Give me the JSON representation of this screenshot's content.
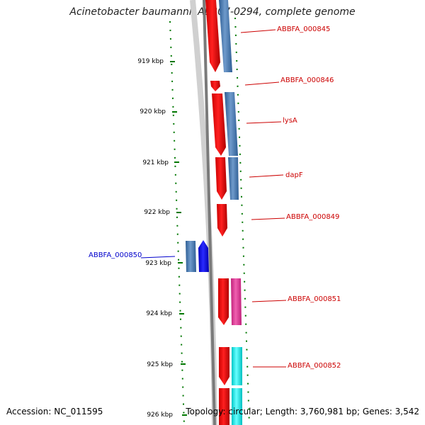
{
  "title": "Acinetobacter baumannii AB307-0294, complete genome",
  "ticks": [
    "919 kbp",
    "920 kbp",
    "921 kbp",
    "922 kbp",
    "923 kbp",
    "924 kbp",
    "925 kbp",
    "926 kbp"
  ],
  "genes": [
    {
      "name": "ABBFA_000845",
      "color": "#cc0000"
    },
    {
      "name": "ABBFA_000846",
      "color": "#cc0000"
    },
    {
      "name": "lysA",
      "color": "#cc0000"
    },
    {
      "name": "dapF",
      "color": "#cc0000"
    },
    {
      "name": "ABBFA_000849",
      "color": "#cc0000"
    },
    {
      "name": "ABBFA_000850",
      "color": "#0000cc"
    },
    {
      "name": "ABBFA_000851",
      "color": "#cc0000"
    },
    {
      "name": "ABBFA_000852",
      "color": "#cc0000"
    }
  ],
  "footer": {
    "accession": "Accession: NC_011595",
    "stats": "Topology: circular; Length: 3,760,981 bp; Genes: 3,542"
  },
  "colors": {
    "forward_cds": "#ff0000",
    "reverse_cds": "#0000ff",
    "cog_blue": "#4a7ab0",
    "cog_pink": "#e0409a",
    "cog_cyan": "#00e5e5",
    "backbone": "#808080",
    "tick_green": "#007700"
  }
}
